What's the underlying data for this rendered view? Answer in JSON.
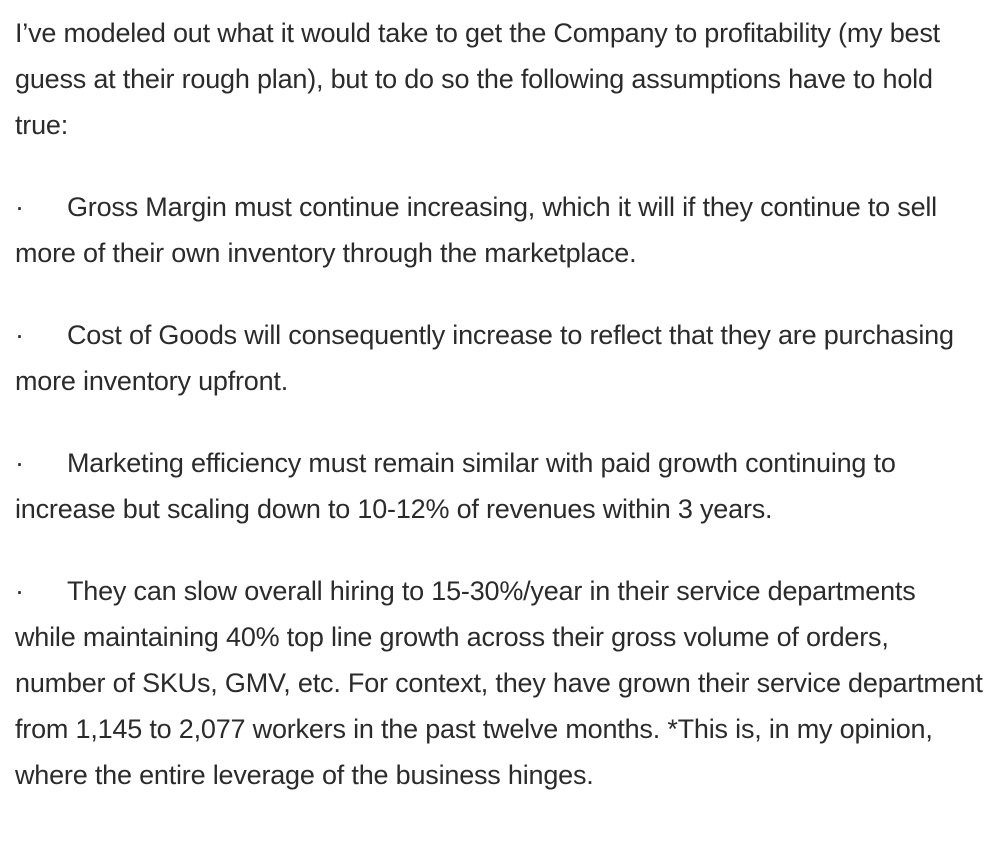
{
  "intro": "I’ve modeled out what it would take to get the Company to profitability (my best guess at their rough plan), but to do so the following assumptions have to hold true:",
  "bullet_symbol": "·",
  "bullets": [
    "Gross Margin must continue increasing, which it will if they continue to sell more of their own inventory through the marketplace.",
    "Cost of Goods will consequently increase to reflect that they are purchasing more inventory upfront.",
    "Marketing efficiency must remain similar with paid growth continuing to increase but scaling down to 10-12% of revenues within 3 years.",
    "They can slow overall hiring to 15-30%/year in their service departments while maintaining 40% top line growth across their gross volume of orders, number of SKUs, GMV, etc. For context, they have grown their service department from 1,145 to 2,077 workers in the past twelve months. *This is, in my opinion, where the entire leverage of the business hinges."
  ]
}
